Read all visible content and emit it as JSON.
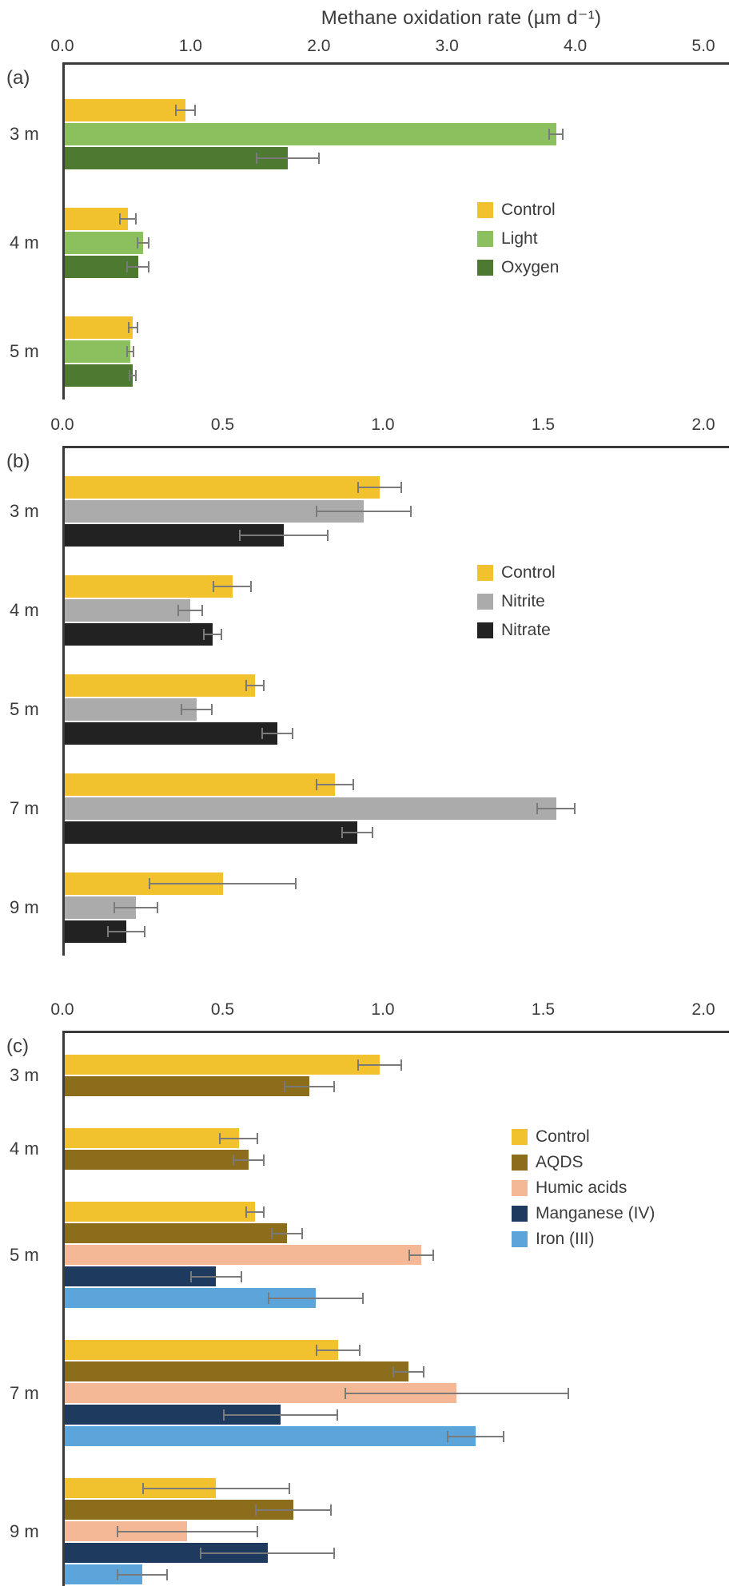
{
  "title": "Methane oxidation rate (µm d⁻¹)",
  "colors": {
    "control": "#F2C12E",
    "light": "#8CBF5E",
    "oxygen": "#4D7930",
    "nitrite": "#ABABAB",
    "nitrate": "#222222",
    "aqds": "#8C6D1C",
    "humic_acids": "#F4B896",
    "manganese_iv": "#1F3A5F",
    "iron_iii": "#5CA5DB",
    "error_bar": "#7A7A7A",
    "axis": "#3A3A3A",
    "text": "#3B3B3B"
  },
  "chart_data": [
    {
      "panel": "(a)",
      "type": "bar",
      "orientation": "horizontal",
      "xlabel": "Methane oxidation rate (µm d⁻¹)",
      "xlim": [
        0,
        5
      ],
      "xticks": [
        "0.0",
        "1.0",
        "2.0",
        "3.0",
        "4.0",
        "5.0"
      ],
      "categories": [
        "3 m",
        "4 m",
        "5 m"
      ],
      "legend_position": "center-right",
      "series": [
        {
          "name": "Control",
          "color": "#F2C12E",
          "values": [
            0.96,
            0.51,
            0.55
          ],
          "errors": [
            0.08,
            0.07,
            0.04
          ]
        },
        {
          "name": "Light",
          "color": "#8CBF5E",
          "values": [
            3.85,
            0.63,
            0.53
          ],
          "errors": [
            0.06,
            0.05,
            0.03
          ]
        },
        {
          "name": "Oxygen",
          "color": "#4D7930",
          "values": [
            1.76,
            0.59,
            0.55
          ],
          "errors": [
            0.25,
            0.09,
            0.03
          ]
        }
      ]
    },
    {
      "panel": "(b)",
      "type": "bar",
      "orientation": "horizontal",
      "xlabel": "Methane oxidation rate (µm d⁻¹)",
      "xlim": [
        0,
        2
      ],
      "xticks": [
        "0.0",
        "0.5",
        "1.0",
        "1.5",
        "2.0"
      ],
      "categories": [
        "3 m",
        "4 m",
        "5 m",
        "7 m",
        "9 m"
      ],
      "legend_position": "center-right",
      "series": [
        {
          "name": "Control",
          "color": "#F2C12E",
          "values": [
            0.99,
            0.53,
            0.6,
            0.85,
            0.5
          ],
          "errors": [
            0.07,
            0.06,
            0.03,
            0.06,
            0.23
          ]
        },
        {
          "name": "Nitrite",
          "color": "#ABABAB",
          "values": [
            0.94,
            0.4,
            0.42,
            1.54,
            0.23
          ],
          "errors": [
            0.15,
            0.04,
            0.05,
            0.06,
            0.07
          ]
        },
        {
          "name": "Nitrate",
          "color": "#222222",
          "values": [
            0.69,
            0.47,
            0.67,
            0.92,
            0.2
          ],
          "errors": [
            0.14,
            0.03,
            0.05,
            0.05,
            0.06
          ]
        }
      ]
    },
    {
      "panel": "(c)",
      "type": "bar",
      "orientation": "horizontal",
      "xlabel": "Methane oxidation rate (µm d⁻¹)",
      "xlim": [
        0,
        2
      ],
      "xticks": [
        "0.0",
        "0.5",
        "1.0",
        "1.5",
        "2.0"
      ],
      "categories": [
        "3 m",
        "4 m",
        "5 m",
        "7 m",
        "9 m"
      ],
      "legend_position": "center-right",
      "series": [
        {
          "name": "Control",
          "color": "#F2C12E",
          "values": [
            0.99,
            0.55,
            0.6,
            0.86,
            0.48
          ],
          "errors": [
            0.07,
            0.06,
            0.03,
            0.07,
            0.23
          ]
        },
        {
          "name": "AQDS",
          "color": "#8C6D1C",
          "values": [
            0.77,
            0.58,
            0.7,
            1.08,
            0.72
          ],
          "errors": [
            0.08,
            0.05,
            0.05,
            0.05,
            0.12
          ]
        },
        {
          "name": "Humic acids",
          "color": "#F4B896",
          "values": [
            null,
            null,
            1.12,
            1.23,
            0.39
          ],
          "errors": [
            null,
            null,
            0.04,
            0.35,
            0.22
          ]
        },
        {
          "name": "Manganese (IV)",
          "color": "#1F3A5F",
          "values": [
            null,
            null,
            0.48,
            0.68,
            0.64
          ],
          "errors": [
            null,
            null,
            0.08,
            0.18,
            0.21
          ]
        },
        {
          "name": "Iron (III)",
          "color": "#5CA5DB",
          "values": [
            null,
            null,
            0.79,
            1.29,
            0.25
          ],
          "errors": [
            null,
            null,
            0.15,
            0.09,
            0.08
          ]
        }
      ]
    }
  ]
}
